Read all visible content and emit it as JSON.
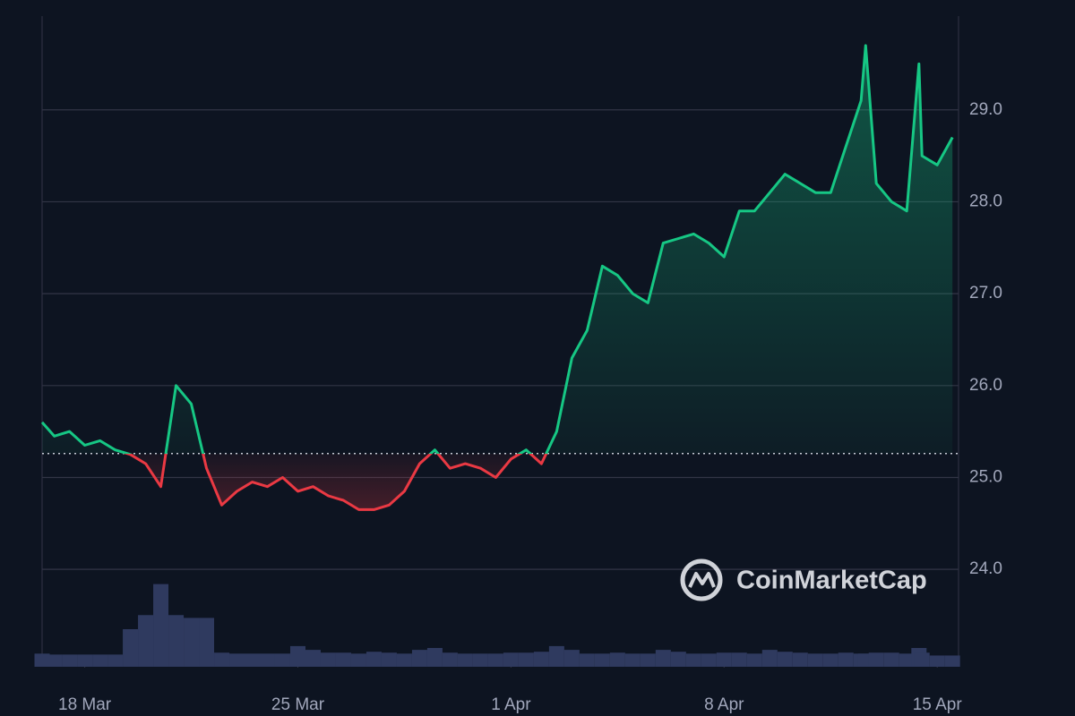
{
  "chart_data": {
    "type": "line",
    "x": [
      -1.4,
      -1,
      -0.5,
      0,
      0.5,
      1,
      1.5,
      2,
      2.5,
      3,
      3.5,
      4,
      4.5,
      5,
      5.5,
      6,
      6.5,
      7,
      7.5,
      8,
      8.5,
      9,
      9.5,
      10,
      10.5,
      11,
      11.5,
      12,
      12.5,
      13,
      13.5,
      14,
      14.5,
      15,
      15.5,
      16,
      16.5,
      17,
      17.5,
      18,
      18.5,
      19,
      19.5,
      20,
      20.5,
      21,
      21.5,
      22,
      22.5,
      23,
      23.5,
      24,
      24.5,
      25,
      25.5,
      25.65,
      26,
      26.5,
      27,
      27.4,
      27.5,
      28,
      28.5
    ],
    "values": [
      25.6,
      25.45,
      25.5,
      25.35,
      25.4,
      25.3,
      25.25,
      25.15,
      24.9,
      26.0,
      25.8,
      25.1,
      24.7,
      24.85,
      24.95,
      24.9,
      25.0,
      24.85,
      24.9,
      24.8,
      24.75,
      24.65,
      24.65,
      24.7,
      24.85,
      25.15,
      25.3,
      25.1,
      25.15,
      25.1,
      25.0,
      25.2,
      25.3,
      25.15,
      25.5,
      26.3,
      26.6,
      27.3,
      27.2,
      27.0,
      26.9,
      27.55,
      27.6,
      27.65,
      27.55,
      27.4,
      27.9,
      27.9,
      28.1,
      28.3,
      28.2,
      28.1,
      28.1,
      28.6,
      29.1,
      29.7,
      28.2,
      28.0,
      27.9,
      29.5,
      28.5,
      28.4,
      28.7
    ],
    "volume_values": [
      14,
      13,
      13,
      13,
      13,
      13,
      40,
      55,
      88,
      55,
      52,
      52,
      15,
      14,
      14,
      14,
      14,
      22,
      18,
      15,
      15,
      14,
      16,
      15,
      14,
      18,
      20,
      15,
      14,
      14,
      14,
      15,
      15,
      16,
      22,
      18,
      14,
      14,
      15,
      14,
      14,
      18,
      16,
      14,
      14,
      15,
      15,
      14,
      18,
      16,
      15,
      14,
      14,
      15,
      14,
      14,
      15,
      15,
      14,
      20,
      15,
      12,
      12
    ],
    "baseline": 25.26,
    "up_color": "#16c784",
    "down_color": "#ea3943",
    "volume_color": "#2f3a5f",
    "xlim": [
      -1.4,
      28.7
    ],
    "ylim": [
      22.94,
      30.02
    ],
    "y2lim": [
      0,
      100
    ],
    "xticks": [
      {
        "value": 0,
        "label": "18 Mar"
      },
      {
        "value": 7,
        "label": "25 Mar"
      },
      {
        "value": 14,
        "label": "1 Apr"
      },
      {
        "value": 21,
        "label": "8 Apr"
      },
      {
        "value": 28,
        "label": "15 Apr"
      }
    ],
    "yticks": [
      {
        "value": 24,
        "label": "24.0"
      },
      {
        "value": 25,
        "label": "25.0"
      },
      {
        "value": 26,
        "label": "26.0"
      },
      {
        "value": 27,
        "label": "27.0"
      },
      {
        "value": 28,
        "label": "28.0"
      },
      {
        "value": 29,
        "label": "29.0"
      }
    ],
    "grid": true,
    "watermark": "CoinMarketCap"
  }
}
